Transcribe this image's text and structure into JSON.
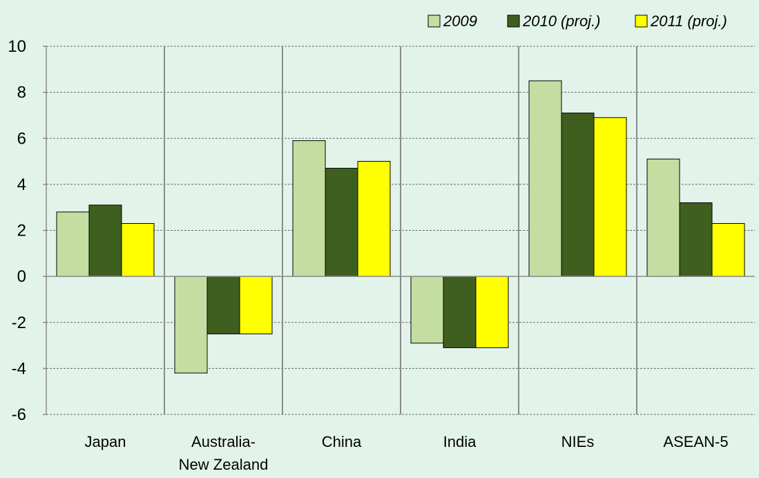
{
  "chart_data": {
    "type": "bar",
    "categories": [
      [
        "Japan"
      ],
      [
        "Australia-",
        "New Zealand"
      ],
      [
        "China"
      ],
      [
        "India"
      ],
      [
        "NIEs"
      ],
      [
        "ASEAN-5"
      ]
    ],
    "series": [
      {
        "name": "2009",
        "color": "#c3deA0",
        "values": [
          2.8,
          -4.2,
          5.9,
          -2.9,
          8.5,
          5.1
        ]
      },
      {
        "name": "2010 (proj.)",
        "color": "#3f5f1f",
        "values": [
          3.1,
          -2.5,
          4.7,
          -3.1,
          7.1,
          3.2
        ]
      },
      {
        "name": "2011 (proj.)",
        "color": "#ffff00",
        "values": [
          2.3,
          -2.5,
          5.0,
          -3.1,
          6.9,
          2.3
        ]
      }
    ],
    "ylim": [
      -6,
      10
    ],
    "yticks": [
      10,
      8,
      6,
      4,
      2,
      0,
      -2,
      -4,
      -6
    ],
    "title": "",
    "xlabel": "",
    "ylabel": "",
    "grid": true,
    "legend": "top-right"
  }
}
